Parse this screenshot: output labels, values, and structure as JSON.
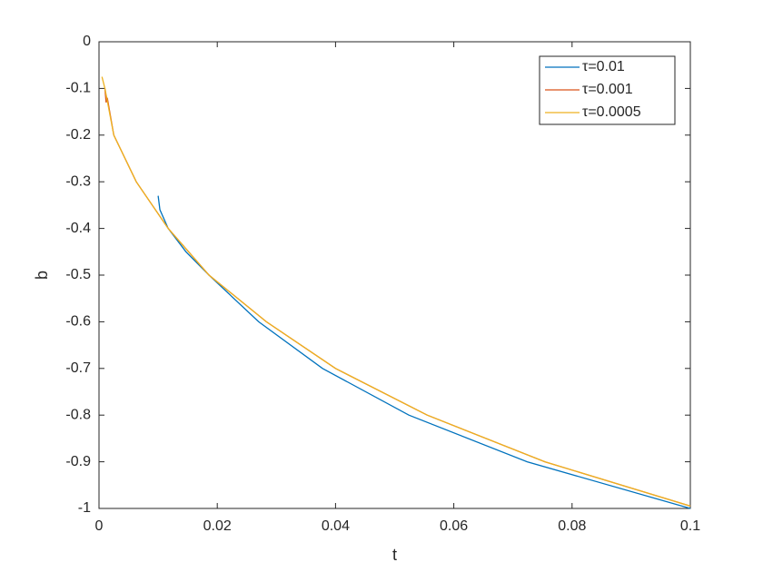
{
  "chart_data": {
    "type": "line",
    "x_label": "t",
    "y_label": "b",
    "xlim": [
      0,
      0.1
    ],
    "ylim": [
      -1,
      0
    ],
    "xticks": [
      0,
      0.02,
      0.04,
      0.06,
      0.08,
      0.1
    ],
    "yticks": [
      0,
      -0.1,
      -0.2,
      -0.3,
      -0.4,
      -0.5,
      -0.6,
      -0.7,
      -0.8,
      -0.9,
      -1
    ],
    "legend": "northeast",
    "series": [
      {
        "name": "τ=0.01",
        "color": "#0072BD",
        "x": [
          0.01,
          0.0103,
          0.0117,
          0.0147,
          0.0186,
          0.027,
          0.0378,
          0.0524,
          0.0724,
          0.1
        ],
        "values": [
          -0.33,
          -0.36,
          -0.4,
          -0.45,
          -0.5,
          -0.6,
          -0.7,
          -0.8,
          -0.9,
          -1
        ]
      },
      {
        "name": "τ=0.001",
        "color": "#D95319",
        "x": [
          0.001,
          0.0012,
          0.0014,
          0.0025,
          0.0063,
          0.0117,
          0.0186,
          0.0283,
          0.04,
          0.0555,
          0.0754,
          0.1
        ],
        "values": [
          -0.1,
          -0.13,
          -0.12,
          -0.2,
          -0.3,
          -0.4,
          -0.5,
          -0.6,
          -0.7,
          -0.8,
          -0.9,
          -0.995
        ]
      },
      {
        "name": "τ=0.0005",
        "color": "#EDB120",
        "x": [
          0.0005,
          0.001,
          0.0025,
          0.0063,
          0.0117,
          0.0186,
          0.0283,
          0.04,
          0.0555,
          0.0754,
          0.1
        ],
        "values": [
          -0.075,
          -0.1,
          -0.2,
          -0.3,
          -0.4,
          -0.5,
          -0.6,
          -0.7,
          -0.8,
          -0.9,
          -0.995
        ]
      }
    ]
  }
}
